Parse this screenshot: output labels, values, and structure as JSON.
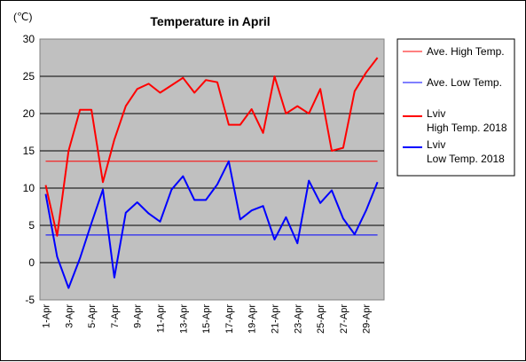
{
  "chart_data": {
    "type": "line",
    "title": "Temperature in April",
    "unit_label": "(℃)",
    "ylim": [
      -5,
      30
    ],
    "y_ticks": [
      "-5",
      "0",
      "5",
      "10",
      "15",
      "20",
      "25",
      "30"
    ],
    "y_tick_values": [
      -5,
      0,
      5,
      10,
      15,
      20,
      25,
      30
    ],
    "x_days": [
      1,
      2,
      3,
      4,
      5,
      6,
      7,
      8,
      9,
      10,
      11,
      12,
      13,
      14,
      15,
      16,
      17,
      18,
      19,
      20,
      21,
      22,
      23,
      24,
      25,
      26,
      27,
      28,
      29,
      30
    ],
    "x_tick_labels": [
      "1-Apr",
      "3-Apr",
      "5-Apr",
      "7-Apr",
      "9-Apr",
      "11-Apr",
      "13-Apr",
      "15-Apr",
      "17-Apr",
      "19-Apr",
      "21-Apr",
      "23-Apr",
      "25-Apr",
      "27-Apr",
      "29-Apr"
    ],
    "x_tick_days": [
      1,
      3,
      5,
      7,
      9,
      11,
      13,
      15,
      17,
      19,
      21,
      23,
      25,
      27,
      29
    ],
    "grid": "horizontal",
    "legend_position": "right",
    "plot_background": "#c0c0c0",
    "series": [
      {
        "legend_lines": [
          "Ave. High Temp."
        ],
        "color": "#ff0000",
        "stroke": "thin",
        "values": [
          13.6,
          13.6,
          13.6,
          13.6,
          13.6,
          13.6,
          13.6,
          13.6,
          13.6,
          13.6,
          13.6,
          13.6,
          13.6,
          13.6,
          13.6,
          13.6,
          13.6,
          13.6,
          13.6,
          13.6,
          13.6,
          13.6,
          13.6,
          13.6,
          13.6,
          13.6,
          13.6,
          13.6,
          13.6,
          13.6
        ]
      },
      {
        "legend_lines": [
          "Ave. Low Temp."
        ],
        "color": "#0000ff",
        "stroke": "thin",
        "values": [
          3.7,
          3.7,
          3.7,
          3.7,
          3.7,
          3.7,
          3.7,
          3.7,
          3.7,
          3.7,
          3.7,
          3.7,
          3.7,
          3.7,
          3.7,
          3.7,
          3.7,
          3.7,
          3.7,
          3.7,
          3.7,
          3.7,
          3.7,
          3.7,
          3.7,
          3.7,
          3.7,
          3.7,
          3.7,
          3.7
        ]
      },
      {
        "legend_lines": [
          "Lviv",
          "High Temp. 2018"
        ],
        "color": "#ff0000",
        "stroke": "thick",
        "values": [
          10.4,
          3.6,
          15.0,
          20.5,
          20.5,
          10.8,
          16.5,
          21.0,
          23.3,
          24.0,
          22.8,
          23.8,
          24.8,
          22.8,
          24.5,
          24.2,
          18.5,
          18.5,
          20.6,
          17.4,
          25.0,
          20.0,
          21.0,
          20.0,
          23.3,
          15.0,
          15.4,
          23.0,
          25.5,
          27.5
        ]
      },
      {
        "legend_lines": [
          "Lviv",
          "Low Temp. 2018"
        ],
        "color": "#0000ff",
        "stroke": "thick",
        "values": [
          9.2,
          0.8,
          -3.4,
          0.6,
          5.3,
          9.8,
          -2.0,
          6.7,
          8.1,
          6.6,
          5.5,
          9.8,
          11.6,
          8.4,
          8.4,
          10.5,
          13.6,
          5.8,
          7.0,
          7.6,
          3.1,
          6.1,
          2.6,
          11.0,
          8.0,
          9.7,
          5.9,
          3.8,
          7.0,
          10.8
        ]
      }
    ]
  }
}
